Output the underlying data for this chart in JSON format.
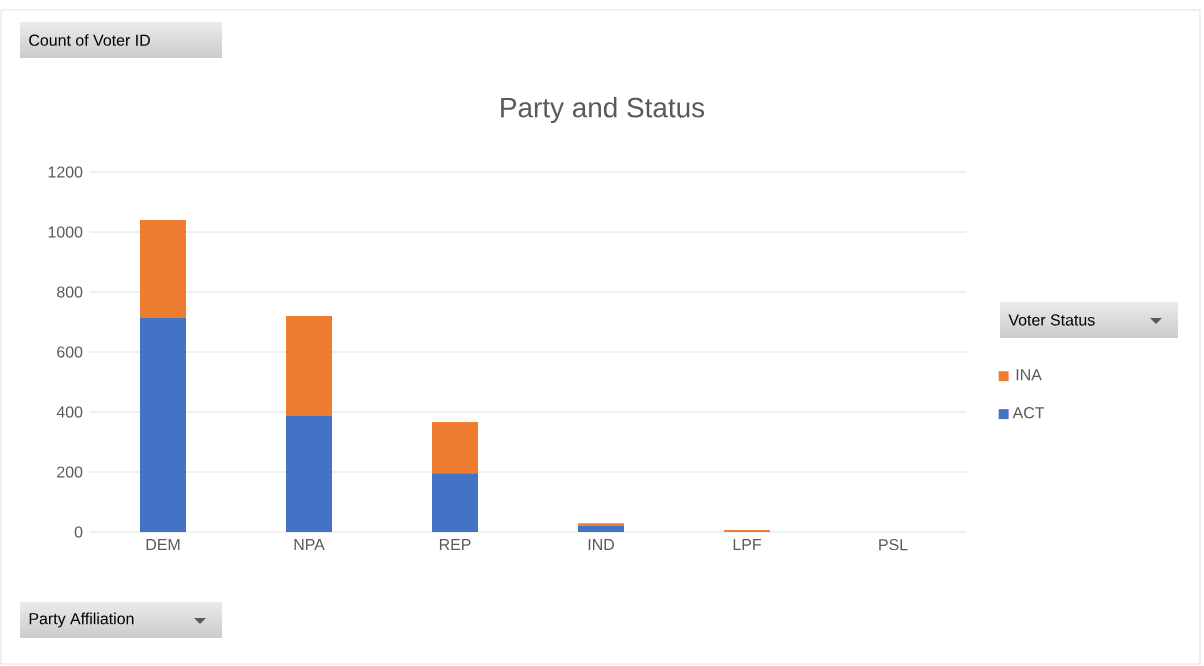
{
  "chart_data": {
    "type": "bar",
    "stacked": true,
    "title": "Party and Status",
    "annotations": [
      "Count of Voter ID"
    ],
    "xlabel": "Party Affiliation",
    "legend_title": "Voter Status",
    "categories": [
      "DEM",
      "NPA",
      "REP",
      "IND",
      "LPF",
      "PSL"
    ],
    "series": [
      {
        "name": "ACT",
        "color": "#4472c4",
        "values": [
          713,
          387,
          196,
          22,
          0,
          0
        ]
      },
      {
        "name": "INA",
        "color": "#ed7d31",
        "values": [
          327,
          333,
          171,
          7,
          7,
          0
        ]
      }
    ],
    "ylim": [
      0,
      1200
    ],
    "yticks": [
      0,
      200,
      400,
      600,
      800,
      1000,
      1200
    ],
    "grid": "y",
    "legend": "right"
  }
}
